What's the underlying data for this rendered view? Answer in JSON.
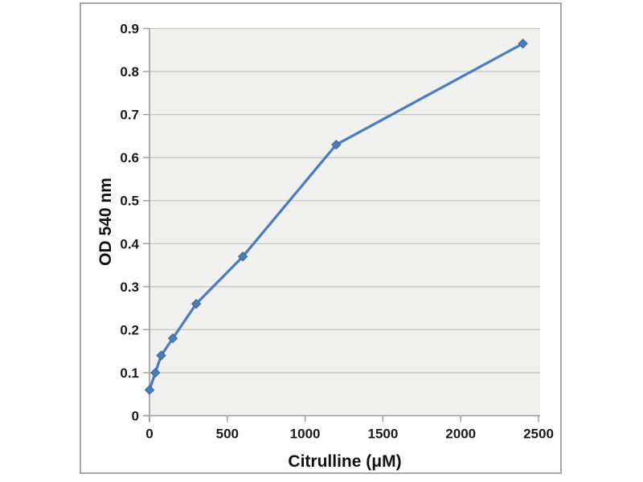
{
  "chart_data": {
    "type": "line",
    "title": "",
    "xlabel": "Citrulline (μM)",
    "ylabel": "OD 540 nm",
    "x": [
      0,
      37.5,
      75,
      150,
      300,
      600,
      1200,
      2400
    ],
    "y": [
      0.06,
      0.1,
      0.14,
      0.18,
      0.26,
      0.37,
      0.63,
      0.865
    ],
    "xlim": [
      0,
      2500
    ],
    "ylim": [
      0,
      0.9
    ],
    "x_tick_values": [
      0,
      500,
      1000,
      1500,
      2000,
      2500
    ],
    "x_tick_labels": [
      "0",
      "500",
      "1000",
      "1500",
      "2000",
      "2500"
    ],
    "y_tick_values": [
      0,
      0.1,
      0.2,
      0.3,
      0.4,
      0.5,
      0.6,
      0.7,
      0.8,
      0.9
    ],
    "y_tick_labels": [
      "0",
      "0.1",
      "0.2",
      "0.3",
      "0.4",
      "0.5",
      "0.6",
      "0.7",
      "0.8",
      "0.9"
    ],
    "grid": "horizontal-major",
    "legend": "none",
    "marker": "diamond",
    "colors": {
      "line": "#4A7EBB",
      "marker_fill": "#4A7EBB",
      "marker_border": "#3C6797",
      "plot_background": "#F0F0EE",
      "gridline": "#C4C4C4",
      "axis_line": "#9B9B9B",
      "frame_border": "#A8A8A8",
      "page_background": "#FFFFFF",
      "text": "#1A1A1A"
    }
  }
}
